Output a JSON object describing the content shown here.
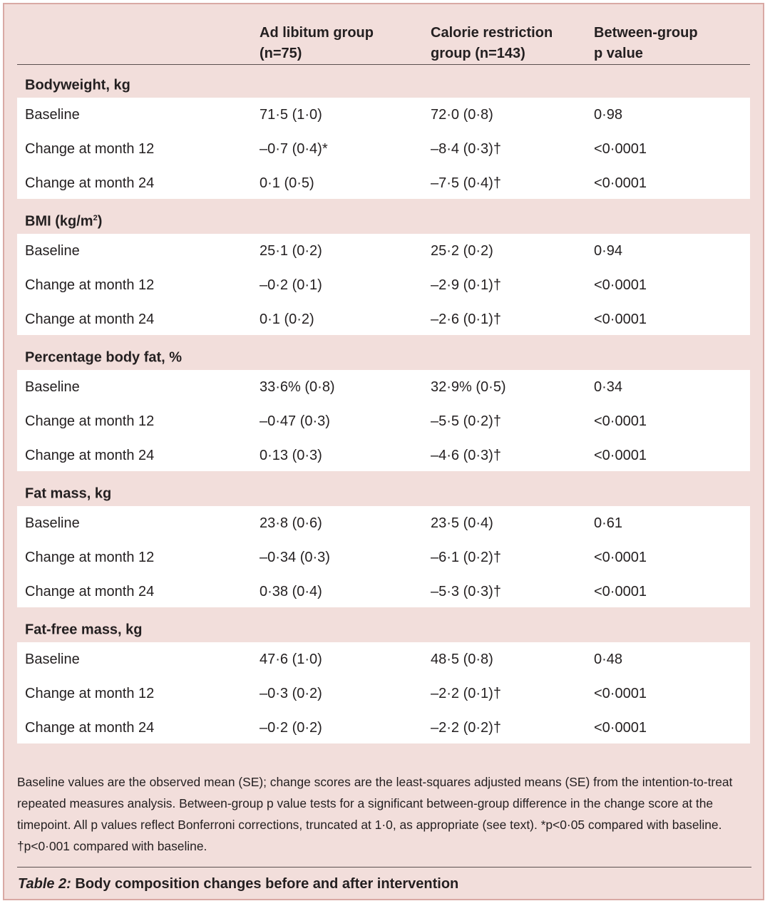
{
  "header": {
    "col1": "Ad libitum group\n(n=75)",
    "col2": "Calorie restriction\ngroup (n=143)",
    "col3": "Between-group\np value"
  },
  "sections": [
    {
      "title": "Bodyweight, kg",
      "title_sup": "",
      "title_tail": "",
      "rows": [
        {
          "label": "Baseline",
          "ad": "71·5 (1·0)",
          "cr": "72·0 (0·8)",
          "p": " 0·98"
        },
        {
          "label": "Change at month 12",
          "ad": "–0·7 (0·4)*",
          "cr": "–8·4 (0·3)†",
          "p": "<0·0001"
        },
        {
          "label": "Change at month 24",
          "ad": " 0·1 (0·5)",
          "cr": "–7·5 (0·4)†",
          "p": "<0·0001"
        }
      ]
    },
    {
      "title": "BMI (kg/m",
      "title_sup": "2",
      "title_tail": ")",
      "rows": [
        {
          "label": "Baseline",
          "ad": "25·1 (0·2)",
          "cr": "25·2 (0·2)",
          "p": " 0·94"
        },
        {
          "label": "Change at month 12",
          "ad": "–0·2 (0·1)",
          "cr": "–2·9 (0·1)†",
          "p": "<0·0001"
        },
        {
          "label": "Change at month 24",
          "ad": " 0·1 (0·2)",
          "cr": "–2·6 (0·1)†",
          "p": "<0·0001"
        }
      ]
    },
    {
      "title": "Percentage body fat, %",
      "title_sup": "",
      "title_tail": "",
      "rows": [
        {
          "label": "Baseline",
          "ad": "33·6% (0·8)",
          "cr": "32·9% (0·5)",
          "p": " 0·34"
        },
        {
          "label": "Change at month 12",
          "ad": "–0·47 (0·3)",
          "cr": "–5·5 (0·2)†",
          "p": "<0·0001"
        },
        {
          "label": "Change at month 24",
          "ad": " 0·13 (0·3)",
          "cr": "–4·6 (0·3)†",
          "p": "<0·0001"
        }
      ]
    },
    {
      "title": "Fat mass, kg",
      "title_sup": "",
      "title_tail": "",
      "rows": [
        {
          "label": "Baseline",
          "ad": "23·8 (0·6)",
          "cr": "23·5 (0·4)",
          "p": " 0·61"
        },
        {
          "label": "Change at month 12",
          "ad": "–0·34 (0·3)",
          "cr": "–6·1 (0·2)†",
          "p": "<0·0001"
        },
        {
          "label": "Change at month 24",
          "ad": " 0·38 (0·4)",
          "cr": "–5·3 (0·3)†",
          "p": "<0·0001"
        }
      ]
    },
    {
      "title": "Fat-free mass, kg",
      "title_sup": "",
      "title_tail": "",
      "rows": [
        {
          "label": "Baseline",
          "ad": "47·6 (1·0)",
          "cr": "48·5 (0·8)",
          "p": " 0·48"
        },
        {
          "label": "Change at month 12",
          "ad": "–0·3 (0·2)",
          "cr": "–2·2 (0·1)†",
          "p": "<0·0001"
        },
        {
          "label": "Change at month 24",
          "ad": "–0·2 (0·2)",
          "cr": "–2·2 (0·2)†",
          "p": "<0·0001"
        }
      ]
    }
  ],
  "footnote": "Baseline values are the observed mean (SE); change scores are the least-squares adjusted means (SE) from the intention-to-treat repeated measures analysis. Between-group p value tests for a significant between-group difference in the change score at the timepoint. All p values reflect Bonferroni corrections, truncated at 1·0, as appropriate (see text). *p<0·05 compared with baseline. †p<0·001 compared with baseline.",
  "caption": {
    "label": "Table 2:",
    "text": " Body composition changes before and after intervention"
  }
}
